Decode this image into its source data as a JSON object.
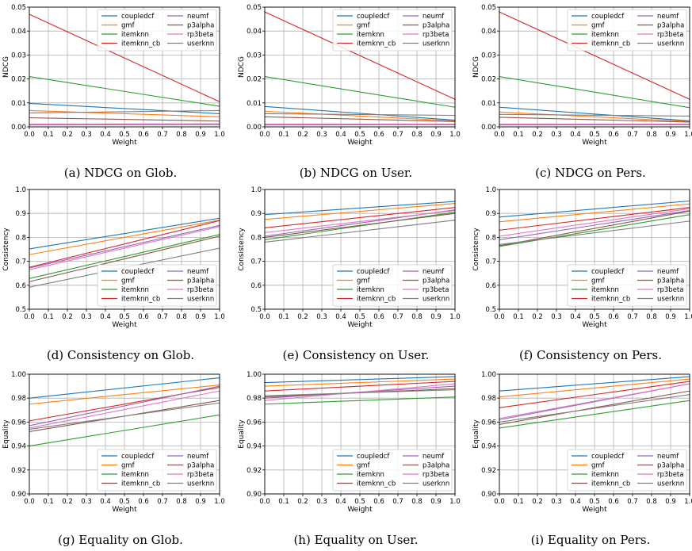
{
  "series_names": [
    "coupledcf",
    "gmf",
    "itemknn",
    "itemknn_cb",
    "neumf",
    "p3alpha",
    "rp3beta",
    "userknn"
  ],
  "series_colors": [
    "#1f77b4",
    "#ff7f0e",
    "#2ca02c",
    "#d62728",
    "#9467bd",
    "#8c564b",
    "#e377c2",
    "#7f7f7f"
  ],
  "chart_data": [
    {
      "id": "a",
      "type": "line",
      "caption": "(a) NDCG on Glob.",
      "xlabel": "Weight",
      "ylabel": "NDCG",
      "xlim": [
        0,
        1
      ],
      "ylim": [
        0,
        0.05
      ],
      "xticks": [
        "0.0",
        "0.1",
        "0.2",
        "0.3",
        "0.4",
        "0.5",
        "0.6",
        "0.7",
        "0.8",
        "0.9",
        "1.0"
      ],
      "yticks": [
        0,
        0.01,
        0.02,
        0.03,
        0.04,
        0.05
      ],
      "ytick_labels": [
        "0.00",
        "0.01",
        "0.02",
        "0.03",
        "0.04",
        "0.05"
      ],
      "legend": "top-right",
      "grid": true,
      "x": [
        0,
        1
      ],
      "series": [
        {
          "name": "coupledcf",
          "values": [
            0.0098,
            0.0055
          ]
        },
        {
          "name": "gmf",
          "values": [
            0.0068,
            0.0042
          ]
        },
        {
          "name": "itemknn",
          "values": [
            0.021,
            0.0086
          ]
        },
        {
          "name": "itemknn_cb",
          "values": [
            0.047,
            0.0105
          ]
        },
        {
          "name": "neumf",
          "values": [
            0.0008,
            0.0009
          ]
        },
        {
          "name": "p3alpha",
          "values": [
            0.0038,
            0.0024
          ]
        },
        {
          "name": "rp3beta",
          "values": [
            0.0012,
            0.0013
          ]
        },
        {
          "name": "userknn",
          "values": [
            0.0058,
            0.0068
          ]
        }
      ]
    },
    {
      "id": "b",
      "type": "line",
      "caption": "(b) NDCG on User.",
      "xlabel": "Weight",
      "ylabel": "NDCG",
      "xlim": [
        0,
        1
      ],
      "ylim": [
        0,
        0.05
      ],
      "xticks": [
        "0.0",
        "0.1",
        "0.2",
        "0.3",
        "0.4",
        "0.5",
        "0.6",
        "0.7",
        "0.8",
        "0.9",
        "1.0"
      ],
      "yticks": [
        0,
        0.01,
        0.02,
        0.03,
        0.04,
        0.05
      ],
      "ytick_labels": [
        "0.00",
        "0.01",
        "0.02",
        "0.03",
        "0.04",
        "0.05"
      ],
      "legend": "top-right",
      "grid": true,
      "x": [
        0,
        1
      ],
      "series": [
        {
          "name": "coupledcf",
          "values": [
            0.0085,
            0.0028
          ]
        },
        {
          "name": "gmf",
          "values": [
            0.0065,
            0.0025
          ]
        },
        {
          "name": "itemknn",
          "values": [
            0.021,
            0.0082
          ]
        },
        {
          "name": "itemknn_cb",
          "values": [
            0.048,
            0.0115
          ]
        },
        {
          "name": "neumf",
          "values": [
            0.0008,
            0.0009
          ]
        },
        {
          "name": "p3alpha",
          "values": [
            0.0042,
            0.0022
          ]
        },
        {
          "name": "rp3beta",
          "values": [
            0.0012,
            0.0012
          ]
        },
        {
          "name": "userknn",
          "values": [
            0.0055,
            0.0048
          ]
        }
      ]
    },
    {
      "id": "c",
      "type": "line",
      "caption": "(c) NDCG on Pers.",
      "xlabel": "Weight",
      "ylabel": "NDCG",
      "xlim": [
        0,
        1
      ],
      "ylim": [
        0,
        0.05
      ],
      "xticks": [
        "0.0",
        "0.1",
        "0.2",
        "0.3",
        "0.4",
        "0.5",
        "0.6",
        "0.7",
        "0.8",
        "0.9",
        "1.0"
      ],
      "yticks": [
        0,
        0.01,
        0.02,
        0.03,
        0.04,
        0.05
      ],
      "ytick_labels": [
        "0.00",
        "0.01",
        "0.02",
        "0.03",
        "0.04",
        "0.05"
      ],
      "legend": "top-right",
      "grid": true,
      "x": [
        0,
        1
      ],
      "series": [
        {
          "name": "coupledcf",
          "values": [
            0.0082,
            0.0025
          ]
        },
        {
          "name": "gmf",
          "values": [
            0.0062,
            0.0022
          ]
        },
        {
          "name": "itemknn",
          "values": [
            0.021,
            0.008
          ]
        },
        {
          "name": "itemknn_cb",
          "values": [
            0.048,
            0.0115
          ]
        },
        {
          "name": "neumf",
          "values": [
            0.0008,
            0.0009
          ]
        },
        {
          "name": "p3alpha",
          "values": [
            0.004,
            0.002
          ]
        },
        {
          "name": "rp3beta",
          "values": [
            0.0012,
            0.0012
          ]
        },
        {
          "name": "userknn",
          "values": [
            0.0052,
            0.0045
          ]
        }
      ]
    },
    {
      "id": "d",
      "type": "line",
      "caption": "(d) Consistency on Glob.",
      "xlabel": "Weight",
      "ylabel": "Consistency",
      "xlim": [
        0,
        1
      ],
      "ylim": [
        0.5,
        1.0
      ],
      "xticks": [
        "0.0",
        "0.1",
        "0.2",
        "0.3",
        "0.4",
        "0.5",
        "0.6",
        "0.7",
        "0.8",
        "0.9",
        "1.0"
      ],
      "yticks": [
        0.5,
        0.6,
        0.7,
        0.8,
        0.9,
        1.0
      ],
      "ytick_labels": [
        "0.5",
        "0.6",
        "0.7",
        "0.8",
        "0.9",
        "1.0"
      ],
      "legend": "bottom-right",
      "grid": true,
      "x": [
        0,
        1
      ],
      "series": [
        {
          "name": "coupledcf",
          "values": [
            0.752,
            0.88
          ]
        },
        {
          "name": "gmf",
          "values": [
            0.728,
            0.872
          ]
        },
        {
          "name": "itemknn",
          "values": [
            0.628,
            0.812
          ]
        },
        {
          "name": "itemknn_cb",
          "values": [
            0.675,
            0.87
          ]
        },
        {
          "name": "neumf",
          "values": [
            0.672,
            0.85
          ]
        },
        {
          "name": "p3alpha",
          "values": [
            0.615,
            0.805
          ]
        },
        {
          "name": "rp3beta",
          "values": [
            0.665,
            0.845
          ]
        },
        {
          "name": "userknn",
          "values": [
            0.592,
            0.755
          ]
        }
      ]
    },
    {
      "id": "e",
      "type": "line",
      "caption": "(e) Consistency on User.",
      "xlabel": "Weight",
      "ylabel": "Consistency",
      "xlim": [
        0,
        1
      ],
      "ylim": [
        0.5,
        1.0
      ],
      "xticks": [
        "0.0",
        "0.1",
        "0.2",
        "0.3",
        "0.4",
        "0.5",
        "0.6",
        "0.7",
        "0.8",
        "0.9",
        "1.0"
      ],
      "yticks": [
        0.5,
        0.6,
        0.7,
        0.8,
        0.9,
        1.0
      ],
      "ytick_labels": [
        "0.5",
        "0.6",
        "0.7",
        "0.8",
        "0.9",
        "1.0"
      ],
      "legend": "bottom-right",
      "grid": true,
      "x": [
        0,
        1
      ],
      "series": [
        {
          "name": "coupledcf",
          "values": [
            0.895,
            0.95
          ]
        },
        {
          "name": "gmf",
          "values": [
            0.875,
            0.942
          ]
        },
        {
          "name": "itemknn",
          "values": [
            0.79,
            0.905
          ]
        },
        {
          "name": "itemknn_cb",
          "values": [
            0.84,
            0.925
          ]
        },
        {
          "name": "neumf",
          "values": [
            0.805,
            0.915
          ]
        },
        {
          "name": "p3alpha",
          "values": [
            0.8,
            0.9
          ]
        },
        {
          "name": "rp3beta",
          "values": [
            0.82,
            0.912
          ]
        },
        {
          "name": "userknn",
          "values": [
            0.78,
            0.872
          ]
        }
      ]
    },
    {
      "id": "f",
      "type": "line",
      "caption": "(f) Consistency on Pers.",
      "xlabel": "Weight",
      "ylabel": "Consistency",
      "xlim": [
        0,
        1
      ],
      "ylim": [
        0.5,
        1.0
      ],
      "xticks": [
        "0.0",
        "0.1",
        "0.2",
        "0.3",
        "0.4",
        "0.5",
        "0.6",
        "0.7",
        "0.8",
        "0.9",
        "1.0"
      ],
      "yticks": [
        0.5,
        0.6,
        0.7,
        0.8,
        0.9,
        1.0
      ],
      "ytick_labels": [
        "0.5",
        "0.6",
        "0.7",
        "0.8",
        "0.9",
        "1.0"
      ],
      "legend": "bottom-right",
      "grid": true,
      "x": [
        0,
        1
      ],
      "series": [
        {
          "name": "coupledcf",
          "values": [
            0.885,
            0.952
          ]
        },
        {
          "name": "gmf",
          "values": [
            0.865,
            0.94
          ]
        },
        {
          "name": "itemknn",
          "values": [
            0.762,
            0.895
          ]
        },
        {
          "name": "itemknn_cb",
          "values": [
            0.83,
            0.925
          ]
        },
        {
          "name": "neumf",
          "values": [
            0.79,
            0.912
          ]
        },
        {
          "name": "p3alpha",
          "values": [
            0.765,
            0.91
          ]
        },
        {
          "name": "rp3beta",
          "values": [
            0.805,
            0.92
          ]
        },
        {
          "name": "userknn",
          "values": [
            0.77,
            0.868
          ]
        }
      ]
    },
    {
      "id": "g",
      "type": "line",
      "caption": "(g) Equality on Glob.",
      "xlabel": "Weight",
      "ylabel": "Equality",
      "xlim": [
        0,
        1
      ],
      "ylim": [
        0.9,
        1.0
      ],
      "xticks": [
        "0.0",
        "0.1",
        "0.2",
        "0.3",
        "0.4",
        "0.5",
        "0.6",
        "0.7",
        "0.8",
        "0.9",
        "1.0"
      ],
      "yticks": [
        0.9,
        0.92,
        0.94,
        0.96,
        0.98,
        1.0
      ],
      "ytick_labels": [
        "0.90",
        "0.92",
        "0.94",
        "0.96",
        "0.98",
        "1.00"
      ],
      "legend": "bottom-right",
      "grid": true,
      "x": [
        0,
        1
      ],
      "series": [
        {
          "name": "coupledcf",
          "values": [
            0.98,
            0.997
          ]
        },
        {
          "name": "gmf",
          "values": [
            0.975,
            0.991
          ]
        },
        {
          "name": "itemknn",
          "values": [
            0.94,
            0.966
          ]
        },
        {
          "name": "itemknn_cb",
          "values": [
            0.961,
            0.989
          ]
        },
        {
          "name": "neumf",
          "values": [
            0.957,
            0.99
          ]
        },
        {
          "name": "p3alpha",
          "values": [
            0.952,
            0.978
          ]
        },
        {
          "name": "rp3beta",
          "values": [
            0.955,
            0.986
          ]
        },
        {
          "name": "userknn",
          "values": [
            0.954,
            0.976
          ]
        }
      ]
    },
    {
      "id": "h",
      "type": "line",
      "caption": "(h) Equality on User.",
      "xlabel": "Weight",
      "ylabel": "Equality",
      "xlim": [
        0,
        1
      ],
      "ylim": [
        0.9,
        1.0
      ],
      "xticks": [
        "0.0",
        "0.1",
        "0.2",
        "0.3",
        "0.4",
        "0.5",
        "0.6",
        "0.7",
        "0.8",
        "0.9",
        "1.0"
      ],
      "yticks": [
        0.9,
        0.92,
        0.94,
        0.96,
        0.98,
        1.0
      ],
      "ytick_labels": [
        "0.90",
        "0.92",
        "0.94",
        "0.96",
        "0.98",
        "1.00"
      ],
      "legend": "bottom-right",
      "grid": true,
      "x": [
        0,
        1
      ],
      "series": [
        {
          "name": "coupledcf",
          "values": [
            0.993,
            0.998
          ]
        },
        {
          "name": "gmf",
          "values": [
            0.99,
            0.996
          ]
        },
        {
          "name": "itemknn",
          "values": [
            0.975,
            0.981
          ]
        },
        {
          "name": "itemknn_cb",
          "values": [
            0.986,
            0.994
          ]
        },
        {
          "name": "neumf",
          "values": [
            0.98,
            0.99
          ]
        },
        {
          "name": "p3alpha",
          "values": [
            0.981,
            0.988
          ]
        },
        {
          "name": "rp3beta",
          "values": [
            0.978,
            0.992
          ]
        },
        {
          "name": "userknn",
          "values": [
            0.982,
            0.987
          ]
        }
      ]
    },
    {
      "id": "i",
      "type": "line",
      "caption": "(i) Equality on Pers.",
      "xlabel": "Weight",
      "ylabel": "Equality",
      "xlim": [
        0,
        1
      ],
      "ylim": [
        0.9,
        1.0
      ],
      "xticks": [
        "0.0",
        "0.1",
        "0.2",
        "0.3",
        "0.4",
        "0.5",
        "0.6",
        "0.7",
        "0.8",
        "0.9",
        "1.0"
      ],
      "yticks": [
        0.9,
        0.92,
        0.94,
        0.96,
        0.98,
        1.0
      ],
      "ytick_labels": [
        "0.90",
        "0.92",
        "0.94",
        "0.96",
        "0.98",
        "1.00"
      ],
      "legend": "bottom-right",
      "grid": true,
      "x": [
        0,
        1
      ],
      "series": [
        {
          "name": "coupledcf",
          "values": [
            0.986,
            0.998
          ]
        },
        {
          "name": "gmf",
          "values": [
            0.981,
            0.996
          ]
        },
        {
          "name": "itemknn",
          "values": [
            0.955,
            0.978
          ]
        },
        {
          "name": "itemknn_cb",
          "values": [
            0.972,
            0.994
          ]
        },
        {
          "name": "neumf",
          "values": [
            0.962,
            0.992
          ]
        },
        {
          "name": "p3alpha",
          "values": [
            0.958,
            0.986
          ]
        },
        {
          "name": "rp3beta",
          "values": [
            0.963,
            0.992
          ]
        },
        {
          "name": "userknn",
          "values": [
            0.96,
            0.983
          ]
        }
      ]
    }
  ]
}
